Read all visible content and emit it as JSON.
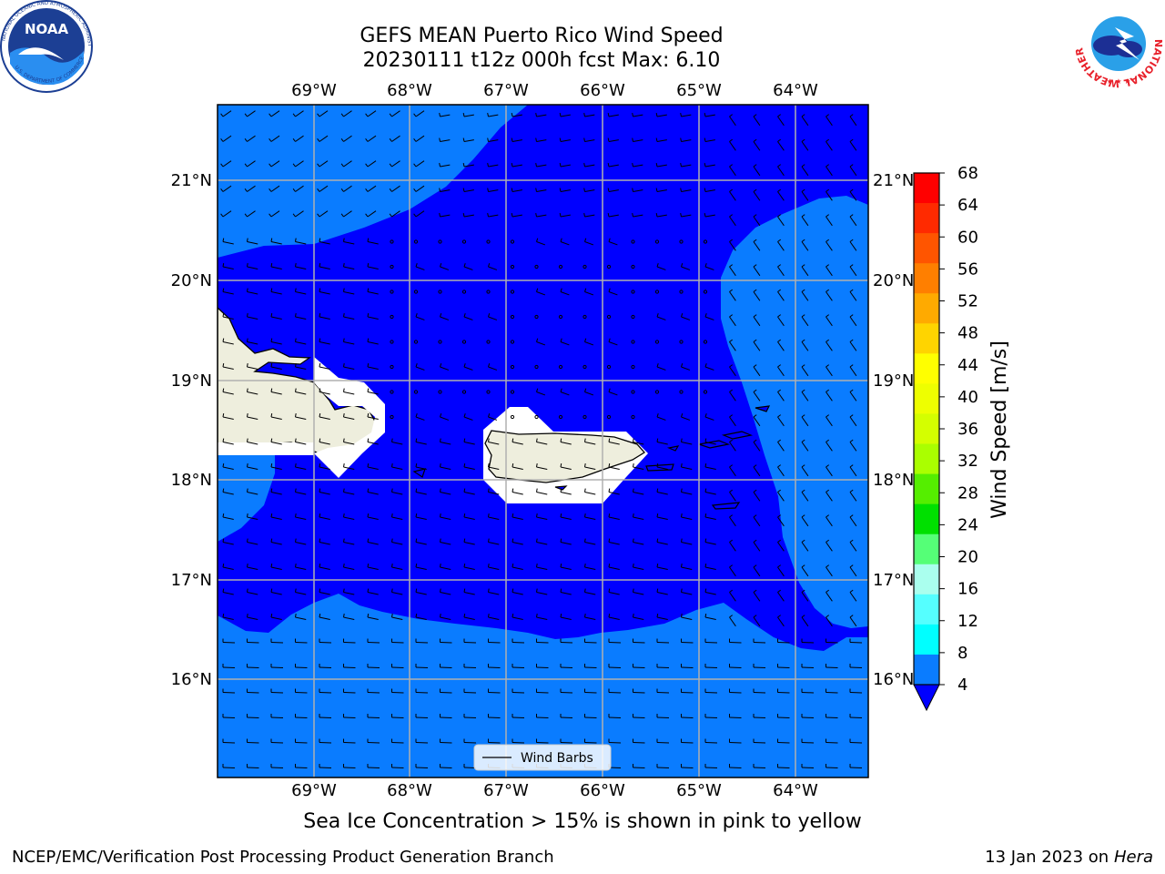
{
  "title": {
    "line1": "GEFS MEAN Puerto Rico Wind Speed",
    "line2": "20230111 t12z 000h fcst   Max: 6.10"
  },
  "subtitle": "Sea Ice Concentration > 15% is shown in pink to yellow",
  "footer": {
    "left": "NCEP/EMC/Verification Post Processing Product Generation Branch",
    "right_prefix": "13 Jan 2023 on ",
    "right_system": "Hera"
  },
  "logos": {
    "noara": "noaa-logo",
    "nws": "nws-logo",
    "noaa_text": "NOAA",
    "noaa_ring": "NATIONAL OCEANIC AND ATMOSPHERIC ADMINISTRATION",
    "noaa_ring_bottom": "U.S. DEPARTMENT OF COMMERCE",
    "nws_ring": "NATIONAL WEATHER SERVICE"
  },
  "map": {
    "lon_labels": [
      "69°W",
      "68°W",
      "67°W",
      "66°W",
      "65°W",
      "64°W"
    ],
    "lat_labels": [
      "21°N",
      "20°N",
      "19°N",
      "18°N",
      "17°N",
      "16°N"
    ],
    "legend_label": "Wind Barbs",
    "colors": {
      "ocean_light": "#0a7cff",
      "ocean_dark": "#0000ff",
      "land": "#eeeedd",
      "grid": "#b0b0b0"
    }
  },
  "colorbar": {
    "label": "Wind Speed [m/s]",
    "ticks": [
      "68",
      "64",
      "60",
      "56",
      "52",
      "48",
      "44",
      "40",
      "36",
      "32",
      "28",
      "24",
      "20",
      "16",
      "12",
      "8",
      "4"
    ],
    "colors": [
      "#ff0000",
      "#ff2a00",
      "#ff5500",
      "#ff7f00",
      "#ffaa00",
      "#ffd400",
      "#ffff00",
      "#eeff00",
      "#d4ff00",
      "#aaff00",
      "#55ee00",
      "#00e000",
      "#55ff77",
      "#aaffee",
      "#55ffff",
      "#00ffff",
      "#0a7cff"
    ],
    "extend_color": "#0000ff"
  }
}
